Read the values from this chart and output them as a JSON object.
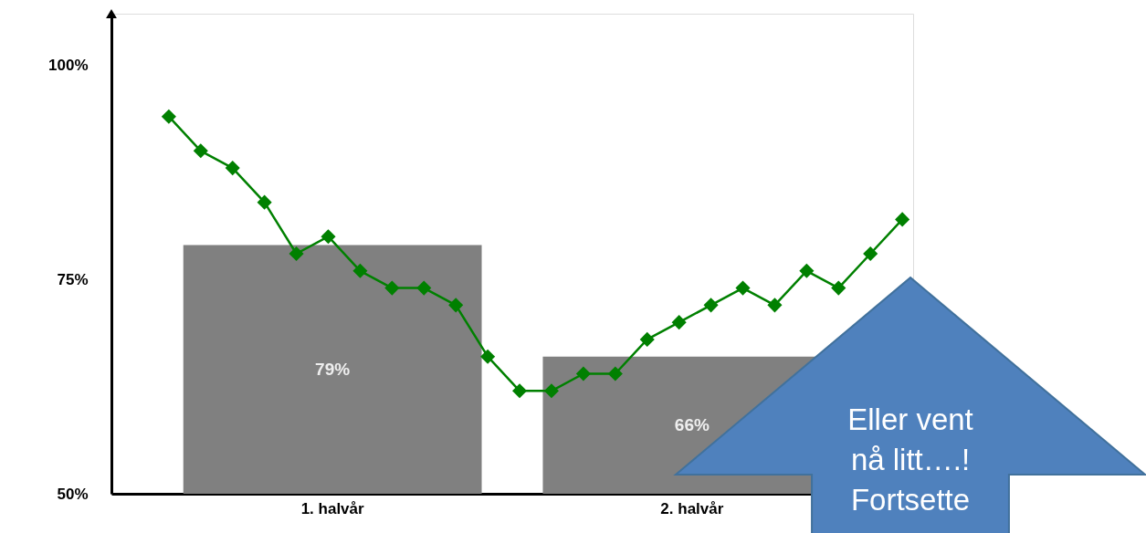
{
  "chart_data": [
    {
      "type": "bar",
      "categories": [
        "1. halvår",
        "2. halvår"
      ],
      "values": [
        79,
        66
      ],
      "value_labels": [
        "79%",
        "66%"
      ],
      "colors": [
        "#808080",
        "#808080"
      ],
      "ylim": [
        50,
        106
      ],
      "yticks": [
        {
          "value": 50,
          "label": "50%"
        },
        {
          "value": 75,
          "label": "75%"
        },
        {
          "value": 100,
          "label": "100%"
        }
      ],
      "grid": false,
      "annotations": [
        "Eller vent\nnå litt….!\nFortsette"
      ]
    },
    {
      "type": "line",
      "categories": [
        null,
        null,
        null,
        null,
        null,
        null,
        null,
        null,
        null,
        null,
        null,
        null,
        null,
        null,
        null,
        null,
        null,
        null,
        null,
        null,
        null,
        null,
        null,
        null
      ],
      "series": [
        {
          "color": "#008000",
          "values": [
            94,
            90,
            88,
            84,
            78,
            80,
            76,
            74,
            74,
            72,
            66,
            62,
            62,
            64,
            64,
            68,
            70,
            72,
            74,
            72,
            76,
            74,
            78,
            82
          ]
        }
      ],
      "marker": "diamond",
      "line_style": "solid",
      "ylim": [
        50,
        106
      ],
      "tick_labels": false
    }
  ]
}
